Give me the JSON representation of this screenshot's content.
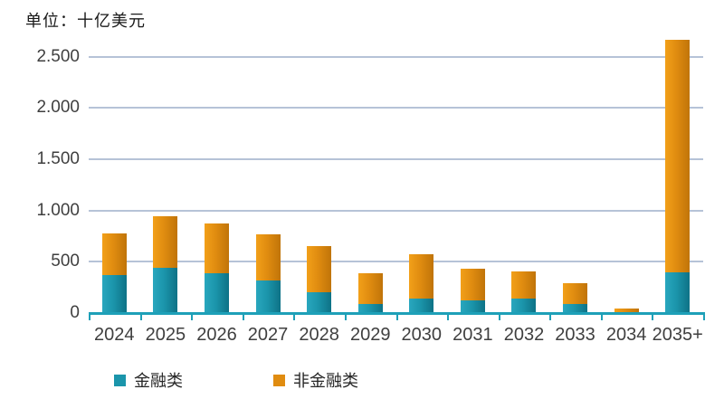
{
  "header": {
    "unit_label": "单位：十亿美元"
  },
  "chart_data": {
    "type": "bar",
    "stacked": true,
    "title": "",
    "xlabel": "",
    "ylabel": "单位：十亿美元",
    "categories": [
      "2024",
      "2025",
      "2026",
      "2027",
      "2028",
      "2029",
      "2030",
      "2031",
      "2032",
      "2033",
      "2034",
      "2035+"
    ],
    "series": [
      {
        "name": "金融类",
        "color": "#1b95ab",
        "color_light": "#29a7be",
        "color_dark": "#0e7286",
        "values": [
          370,
          440,
          390,
          315,
          200,
          90,
          140,
          120,
          145,
          90,
          5,
          400
        ]
      },
      {
        "name": "非金融类",
        "color": "#e08c10",
        "color_light": "#f2a019",
        "color_dark": "#c07409",
        "values": [
          405,
          500,
          480,
          450,
          455,
          300,
          435,
          310,
          265,
          205,
          35,
          2260
        ]
      }
    ],
    "ylim": [
      0,
      2700
    ],
    "yticks": [
      {
        "value": 0,
        "label": "0"
      },
      {
        "value": 500,
        "label": "500"
      },
      {
        "value": 1000,
        "label": "1.000"
      },
      {
        "value": 1500,
        "label": "1.500"
      },
      {
        "value": 2000,
        "label": "2.000"
      },
      {
        "value": 2500,
        "label": "2.500"
      }
    ],
    "grid": "horizontal",
    "legend_position": "bottom",
    "axis_color": "#1ea0b8",
    "gridline_color": "#b6c3d7"
  }
}
